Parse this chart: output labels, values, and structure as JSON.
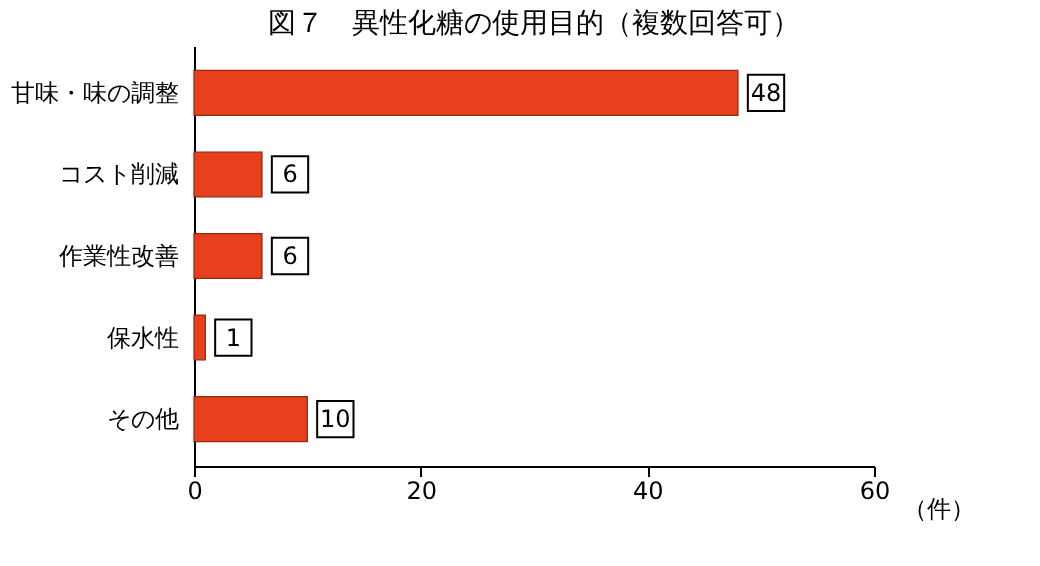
{
  "chart_data": {
    "type": "bar",
    "orientation": "horizontal",
    "title": "図７　異性化糖の使用目的（複数回答可）",
    "xlabel": "（件）",
    "categories": [
      "甘味・味の調整",
      "コスト削減",
      "作業性改善",
      "保水性",
      "その他"
    ],
    "values": [
      48,
      6,
      6,
      1,
      10
    ],
    "color": "#e8401c",
    "xlim": [
      0,
      60
    ],
    "xticks": [
      0,
      20,
      40,
      60
    ],
    "data_labels": true,
    "grid": false
  }
}
